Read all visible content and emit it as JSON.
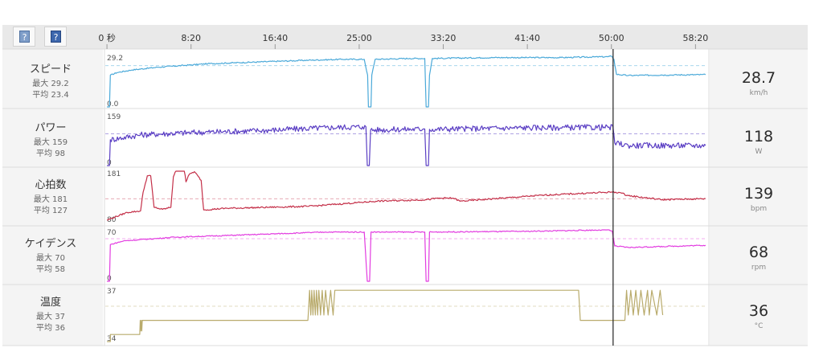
{
  "chart_data": {
    "type": "line",
    "x_unit": "seconds",
    "x_ticks": [
      {
        "label": "0 秒",
        "value": 0
      },
      {
        "label": "8:20",
        "value": 500
      },
      {
        "label": "16:40",
        "value": 1000
      },
      {
        "label": "25:00",
        "value": 1500
      },
      {
        "label": "33:20",
        "value": 2000
      },
      {
        "label": "41:40",
        "value": 2500
      },
      {
        "label": "50:00",
        "value": 3000
      },
      {
        "label": "58:20",
        "value": 3500
      }
    ],
    "xlim": [
      -10,
      3570
    ],
    "cursor_x": 3010,
    "series": [
      {
        "name": "スピード",
        "max_label": "最大 29.2",
        "avg_label": "平均 23.4",
        "current": "28.7",
        "unit": "km/h",
        "color": "#4aa9d9",
        "ylim": [
          0,
          29.2
        ],
        "ytick_labels": [
          "29.2",
          "0.0"
        ],
        "avg": 23.4,
        "noise": 0.35,
        "points": [
          [
            0,
            0
          ],
          [
            15,
            0
          ],
          [
            20,
            18
          ],
          [
            60,
            19.5
          ],
          [
            150,
            21
          ],
          [
            300,
            22.5
          ],
          [
            600,
            24.5
          ],
          [
            900,
            25.5
          ],
          [
            1200,
            26.5
          ],
          [
            1400,
            27
          ],
          [
            1530,
            27
          ],
          [
            1550,
            18
          ],
          [
            1555,
            0
          ],
          [
            1570,
            0
          ],
          [
            1575,
            18
          ],
          [
            1595,
            27
          ],
          [
            1800,
            27.5
          ],
          [
            1890,
            27.5
          ],
          [
            1898,
            0
          ],
          [
            1912,
            0
          ],
          [
            1918,
            18
          ],
          [
            1935,
            27.5
          ],
          [
            2300,
            28
          ],
          [
            2700,
            28
          ],
          [
            2980,
            28.5
          ],
          [
            3000,
            28.8
          ],
          [
            3015,
            27
          ],
          [
            3030,
            18.5
          ],
          [
            3100,
            17.8
          ],
          [
            3300,
            18.1
          ],
          [
            3560,
            18.3
          ]
        ]
      },
      {
        "name": "パワー",
        "max_label": "最大 159",
        "avg_label": "平均 98",
        "current": "118",
        "unit": "W",
        "color": "#5b3fc4",
        "ylim": [
          0,
          159
        ],
        "ytick_labels": [
          "159",
          "0"
        ],
        "avg": 98,
        "noise": 9,
        "points": [
          [
            0,
            0
          ],
          [
            15,
            0
          ],
          [
            20,
            80
          ],
          [
            200,
            95
          ],
          [
            500,
            102
          ],
          [
            900,
            108
          ],
          [
            1300,
            117
          ],
          [
            1520,
            120
          ],
          [
            1540,
            120
          ],
          [
            1548,
            0
          ],
          [
            1560,
            0
          ],
          [
            1568,
            110
          ],
          [
            1880,
            113
          ],
          [
            1890,
            113
          ],
          [
            1898,
            0
          ],
          [
            1912,
            0
          ],
          [
            1918,
            112
          ],
          [
            2500,
            117
          ],
          [
            2980,
            118
          ],
          [
            3010,
            118
          ],
          [
            3020,
            70
          ],
          [
            3100,
            62
          ],
          [
            3560,
            62
          ]
        ]
      },
      {
        "name": "心拍数",
        "max_label": "最大 181",
        "avg_label": "平均 127",
        "current": "139",
        "unit": "bpm",
        "color": "#c42f48",
        "ylim": [
          80,
          181
        ],
        "ytick_labels": [
          "181",
          "80"
        ],
        "avg": 127,
        "noise": 1.5,
        "points": [
          [
            0,
            85
          ],
          [
            40,
            90
          ],
          [
            120,
            100
          ],
          [
            200,
            103
          ],
          [
            215,
            140
          ],
          [
            240,
            172
          ],
          [
            260,
            172
          ],
          [
            280,
            110
          ],
          [
            330,
            106
          ],
          [
            380,
            110
          ],
          [
            395,
            170
          ],
          [
            410,
            184
          ],
          [
            460,
            185
          ],
          [
            470,
            160
          ],
          [
            490,
            175
          ],
          [
            520,
            180
          ],
          [
            560,
            163
          ],
          [
            575,
            105
          ],
          [
            700,
            108
          ],
          [
            1200,
            112
          ],
          [
            1600,
            122
          ],
          [
            1900,
            125
          ],
          [
            1970,
            128
          ],
          [
            2060,
            128
          ],
          [
            2100,
            122
          ],
          [
            2600,
            134
          ],
          [
            3000,
            140
          ],
          [
            3050,
            139
          ],
          [
            3100,
            133
          ],
          [
            3300,
            125
          ],
          [
            3560,
            127
          ]
        ]
      },
      {
        "name": "ケイデンス",
        "max_label": "最大 70",
        "avg_label": "平均 58",
        "current": "68",
        "unit": "rpm",
        "color": "#e23ce0",
        "ylim": [
          0,
          70
        ],
        "ytick_labels": [
          "70",
          "0"
        ],
        "avg": 58,
        "noise": 0.7,
        "points": [
          [
            0,
            0
          ],
          [
            15,
            0
          ],
          [
            20,
            50
          ],
          [
            100,
            55
          ],
          [
            400,
            60
          ],
          [
            800,
            63
          ],
          [
            1300,
            67
          ],
          [
            1530,
            67
          ],
          [
            1548,
            0
          ],
          [
            1562,
            0
          ],
          [
            1570,
            67
          ],
          [
            1890,
            67
          ],
          [
            1898,
            0
          ],
          [
            1912,
            0
          ],
          [
            1918,
            67
          ],
          [
            2500,
            68
          ],
          [
            2980,
            70
          ],
          [
            3005,
            68
          ],
          [
            3020,
            48
          ],
          [
            3100,
            46
          ],
          [
            3560,
            49
          ]
        ]
      },
      {
        "name": "温度",
        "max_label": "最大 37",
        "avg_label": "平均 36",
        "current": "36",
        "unit": "°C",
        "color": "#b9ab6c",
        "ylim": [
          34,
          37
        ],
        "ytick_labels": [
          "37",
          "34"
        ],
        "avg": 36,
        "noise": 0,
        "points": [
          [
            0,
            34
          ],
          [
            20,
            34
          ],
          [
            20,
            34.4
          ],
          [
            195,
            34.4
          ],
          [
            198,
            35.2
          ],
          [
            200,
            34.6
          ],
          [
            205,
            35.2
          ],
          [
            207,
            34.6
          ],
          [
            210,
            35.2
          ],
          [
            1195,
            35.2
          ],
          [
            1205,
            36.9
          ],
          [
            1212,
            35.5
          ],
          [
            1218,
            36.9
          ],
          [
            1225,
            35.5
          ],
          [
            1232,
            36.9
          ],
          [
            1239,
            35.5
          ],
          [
            1246,
            36.9
          ],
          [
            1253,
            35.5
          ],
          [
            1260,
            36.9
          ],
          [
            1270,
            35.5
          ],
          [
            1280,
            36.9
          ],
          [
            1290,
            35.5
          ],
          [
            1300,
            36.9
          ],
          [
            1315,
            35.5
          ],
          [
            1330,
            36.9
          ],
          [
            1345,
            35.5
          ],
          [
            1355,
            36.9
          ],
          [
            2805,
            36.9
          ],
          [
            2815,
            35.2
          ],
          [
            3080,
            35.2
          ],
          [
            3090,
            36.9
          ],
          [
            3100,
            35.5
          ],
          [
            3115,
            36.9
          ],
          [
            3130,
            35.5
          ],
          [
            3145,
            36.9
          ],
          [
            3160,
            35.5
          ],
          [
            3175,
            36.9
          ],
          [
            3195,
            35.5
          ],
          [
            3215,
            36.9
          ],
          [
            3225,
            35.5
          ],
          [
            3240,
            36.9
          ],
          [
            3270,
            35.5
          ],
          [
            3290,
            36.9
          ],
          [
            3305,
            35.5
          ]
        ]
      }
    ]
  }
}
